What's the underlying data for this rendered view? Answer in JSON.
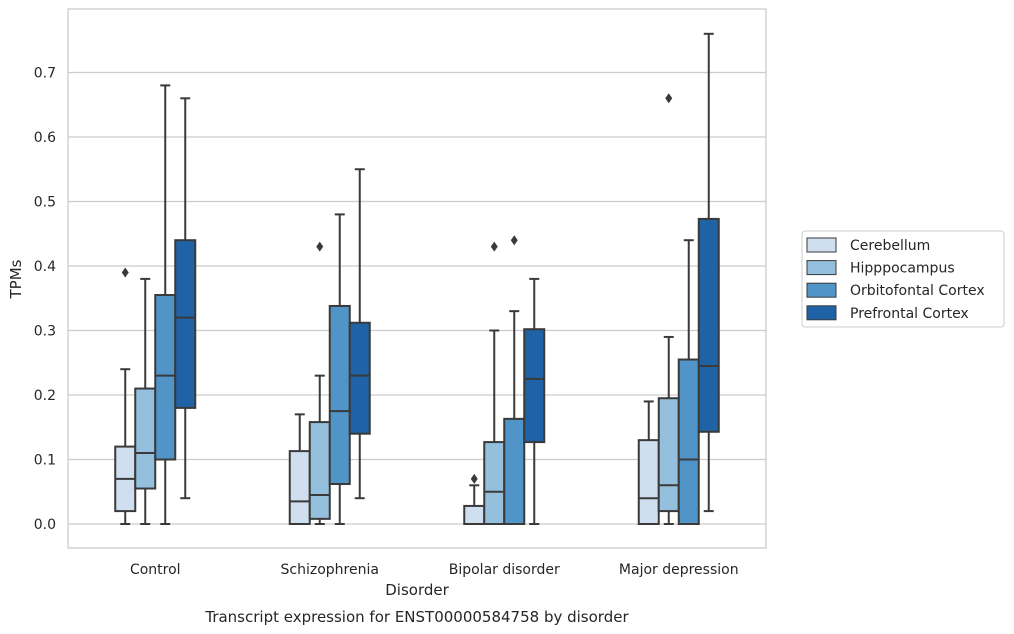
{
  "chart_data": {
    "type": "box",
    "title": "",
    "caption": "Transcript expression for ENST00000584758 by disorder",
    "xlabel": "Disorder",
    "ylabel": "TPMs",
    "ylim": [
      -0.037,
      0.8
    ],
    "yticks": [
      0.0,
      0.1,
      0.2,
      0.3,
      0.4,
      0.5,
      0.6,
      0.7
    ],
    "ytick_labels": [
      "0.0",
      "0.1",
      "0.2",
      "0.3",
      "0.4",
      "0.5",
      "0.6",
      "0.7"
    ],
    "grid": "horizontal",
    "legend_position": "right, outside plot",
    "categories": [
      "Control",
      "Schizophrenia",
      "Bipolar disorder",
      "Major depression"
    ],
    "colors": {
      "Cerebellum": "#cfdff0",
      "Hipppocampus": "#94c0dd",
      "Orbitofontal Cortex": "#5195c8",
      "Prefrontal Cortex": "#2062a6",
      "edge": "#3a3a3a",
      "grid": "#cccccc"
    },
    "series": [
      {
        "name": "Cerebellum",
        "boxes": [
          {
            "min": 0.0,
            "q1": 0.02,
            "median": 0.07,
            "q3": 0.12,
            "max": 0.24,
            "outliers": [
              0.39
            ]
          },
          {
            "min": 0.0,
            "q1": 0.0,
            "median": 0.035,
            "q3": 0.113,
            "max": 0.17,
            "outliers": []
          },
          {
            "min": 0.0,
            "q1": 0.0,
            "median": 0.0,
            "q3": 0.028,
            "max": 0.06,
            "outliers": [
              0.07
            ]
          },
          {
            "min": 0.0,
            "q1": 0.0,
            "median": 0.04,
            "q3": 0.13,
            "max": 0.19,
            "outliers": []
          }
        ]
      },
      {
        "name": "Hipppocampus",
        "boxes": [
          {
            "min": 0.0,
            "q1": 0.055,
            "median": 0.11,
            "q3": 0.21,
            "max": 0.38,
            "outliers": []
          },
          {
            "min": 0.0,
            "q1": 0.008,
            "median": 0.045,
            "q3": 0.158,
            "max": 0.23,
            "outliers": [
              0.43
            ]
          },
          {
            "min": 0.0,
            "q1": 0.0,
            "median": 0.05,
            "q3": 0.127,
            "max": 0.3,
            "outliers": [
              0.43
            ]
          },
          {
            "min": 0.0,
            "q1": 0.02,
            "median": 0.06,
            "q3": 0.195,
            "max": 0.29,
            "outliers": [
              0.66
            ]
          }
        ]
      },
      {
        "name": "Orbitofontal Cortex",
        "boxes": [
          {
            "min": 0.0,
            "q1": 0.1,
            "median": 0.23,
            "q3": 0.355,
            "max": 0.68,
            "outliers": []
          },
          {
            "min": 0.0,
            "q1": 0.062,
            "median": 0.175,
            "q3": 0.338,
            "max": 0.48,
            "outliers": []
          },
          {
            "min": 0.0,
            "q1": 0.0,
            "median": 0.0,
            "q3": 0.163,
            "max": 0.33,
            "outliers": [
              0.44
            ]
          },
          {
            "min": 0.0,
            "q1": 0.0,
            "median": 0.1,
            "q3": 0.255,
            "max": 0.44,
            "outliers": []
          }
        ]
      },
      {
        "name": "Prefrontal Cortex",
        "boxes": [
          {
            "min": 0.04,
            "q1": 0.18,
            "median": 0.32,
            "q3": 0.44,
            "max": 0.66,
            "outliers": []
          },
          {
            "min": 0.04,
            "q1": 0.14,
            "median": 0.23,
            "q3": 0.312,
            "max": 0.55,
            "outliers": []
          },
          {
            "min": 0.0,
            "q1": 0.127,
            "median": 0.225,
            "q3": 0.302,
            "max": 0.38,
            "outliers": []
          },
          {
            "min": 0.02,
            "q1": 0.143,
            "median": 0.245,
            "q3": 0.473,
            "max": 0.76,
            "outliers": []
          }
        ]
      }
    ]
  }
}
